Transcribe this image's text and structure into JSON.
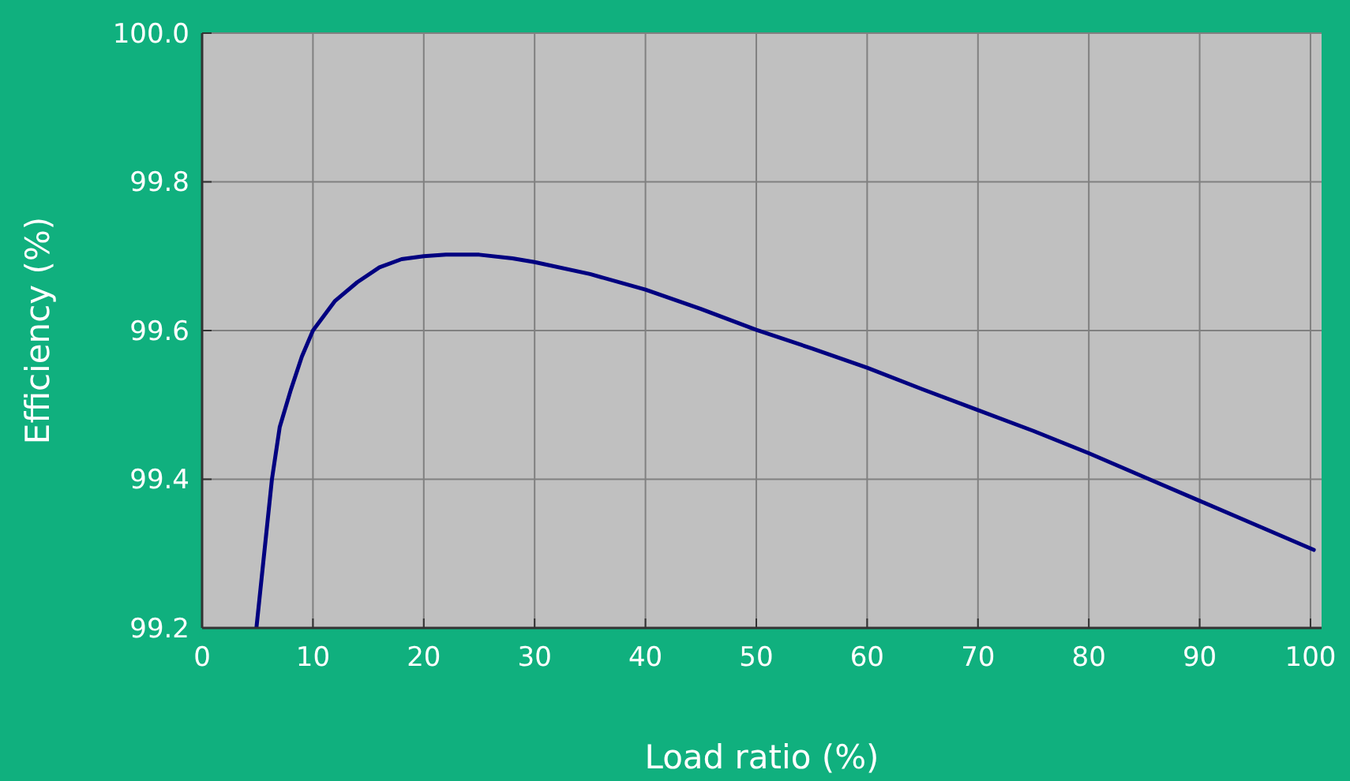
{
  "chart_data": {
    "type": "line",
    "xlabel": "Load ratio (%)",
    "ylabel": "Efficiency (%)",
    "xlim": [
      0,
      101
    ],
    "ylim": [
      99.2,
      100
    ],
    "xticks": [
      0,
      10,
      20,
      30,
      40,
      50,
      60,
      70,
      80,
      90,
      100
    ],
    "yticks": [
      {
        "value": 99.2,
        "label": "99.2"
      },
      {
        "value": 99.4,
        "label": "99.4"
      },
      {
        "value": 99.6,
        "label": "99.6"
      },
      {
        "value": 99.8,
        "label": "99.8"
      },
      {
        "value": 100,
        "label": "100.0"
      }
    ],
    "grid": true,
    "series": [
      {
        "color": "#000080",
        "x": [
          4.9,
          5.6,
          6.3,
          7,
          8,
          9,
          10,
          12,
          14,
          16,
          18,
          20,
          22,
          25,
          28,
          30,
          35,
          40,
          45,
          50,
          55,
          60,
          65,
          70,
          75,
          80,
          85,
          90,
          95,
          100.3
        ],
        "values": [
          99.2,
          99.3,
          99.4,
          99.47,
          99.52,
          99.565,
          99.6,
          99.64,
          99.665,
          99.685,
          99.696,
          99.7,
          99.702,
          99.702,
          99.697,
          99.692,
          99.676,
          99.655,
          99.629,
          99.601,
          99.576,
          99.55,
          99.521,
          99.493,
          99.465,
          99.435,
          99.403,
          99.371,
          99.339,
          99.305
        ]
      }
    ]
  }
}
